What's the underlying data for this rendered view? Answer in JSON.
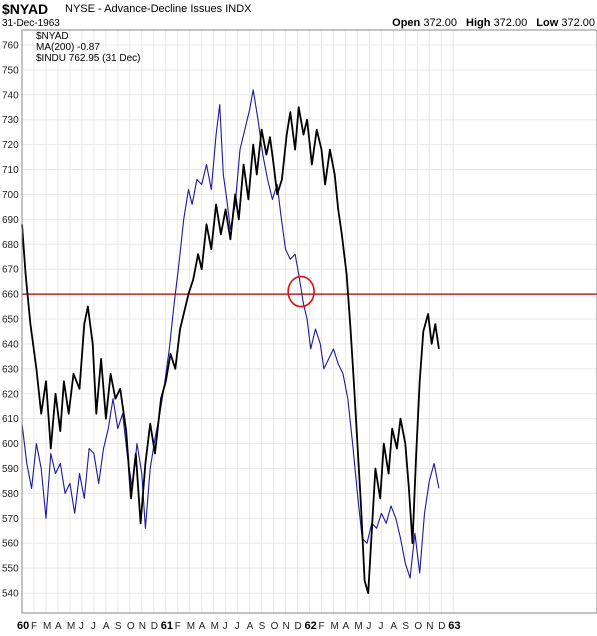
{
  "header": {
    "symbol": "$NYAD",
    "description": "NYSE - Advance-Decline Issues",
    "exchange": "INDX",
    "date": "31-Dec-1963",
    "open_label": "Open",
    "open_value": "372.00",
    "high_label": "High",
    "high_value": "372.00",
    "low_label": "Low",
    "low_value": "372.00"
  },
  "legend": [
    {
      "text": "$NYAD",
      "color": "#000000"
    },
    {
      "text": "MA(200) -0.87",
      "color": "#1f1fbf"
    },
    {
      "text": "$INDU 762.95 (31 Dec)",
      "color": "#000000"
    }
  ],
  "colors": {
    "indu": "#000000",
    "nyad": "#1a1a9e",
    "reference_line": "#b00000",
    "annotation": "#e01010",
    "grid": "#e8e8e8"
  },
  "chart_data": {
    "type": "line",
    "y_ticks": [
      540,
      550,
      560,
      570,
      580,
      590,
      600,
      610,
      620,
      630,
      640,
      650,
      660,
      670,
      680,
      690,
      700,
      710,
      720,
      730,
      740,
      750,
      760
    ],
    "ylim": [
      532,
      766
    ],
    "xlim": [
      0,
      48
    ],
    "x_ticks": [
      {
        "label": "60",
        "x": 0,
        "year": true
      },
      {
        "label": "F",
        "x": 1
      },
      {
        "label": "M",
        "x": 2
      },
      {
        "label": "A",
        "x": 3
      },
      {
        "label": "M",
        "x": 4
      },
      {
        "label": "J",
        "x": 5
      },
      {
        "label": "J",
        "x": 6
      },
      {
        "label": "A",
        "x": 7
      },
      {
        "label": "S",
        "x": 8
      },
      {
        "label": "O",
        "x": 9
      },
      {
        "label": "N",
        "x": 10
      },
      {
        "label": "D",
        "x": 11
      },
      {
        "label": "61",
        "x": 12,
        "year": true
      },
      {
        "label": "F",
        "x": 13
      },
      {
        "label": "M",
        "x": 14
      },
      {
        "label": "A",
        "x": 15
      },
      {
        "label": "M",
        "x": 16
      },
      {
        "label": "J",
        "x": 17
      },
      {
        "label": "J",
        "x": 18
      },
      {
        "label": "A",
        "x": 19
      },
      {
        "label": "S",
        "x": 20
      },
      {
        "label": "O",
        "x": 21
      },
      {
        "label": "N",
        "x": 22
      },
      {
        "label": "D",
        "x": 23
      },
      {
        "label": "62",
        "x": 24,
        "year": true
      },
      {
        "label": "F",
        "x": 25
      },
      {
        "label": "M",
        "x": 26
      },
      {
        "label": "A",
        "x": 27
      },
      {
        "label": "M",
        "x": 28
      },
      {
        "label": "J",
        "x": 29
      },
      {
        "label": "J",
        "x": 30
      },
      {
        "label": "A",
        "x": 31
      },
      {
        "label": "S",
        "x": 32
      },
      {
        "label": "O",
        "x": 33
      },
      {
        "label": "N",
        "x": 34
      },
      {
        "label": "D",
        "x": 35
      },
      {
        "label": "63",
        "x": 36,
        "year": true
      }
    ],
    "reference_line": 660,
    "annotation_circle": {
      "x": 23.3,
      "y": 661
    },
    "series": [
      {
        "name": "$INDU 762.95 (31 Dec)",
        "color": "#000000",
        "width": 1.8,
        "points": [
          [
            0,
            688
          ],
          [
            0.3,
            668
          ],
          [
            0.7,
            648
          ],
          [
            1.2,
            630
          ],
          [
            1.6,
            612
          ],
          [
            2,
            625
          ],
          [
            2.4,
            598
          ],
          [
            2.8,
            620
          ],
          [
            3.2,
            605
          ],
          [
            3.5,
            625
          ],
          [
            3.9,
            612
          ],
          [
            4.3,
            628
          ],
          [
            4.8,
            622
          ],
          [
            5.2,
            648
          ],
          [
            5.5,
            655
          ],
          [
            5.9,
            640
          ],
          [
            6.2,
            612
          ],
          [
            6.6,
            634
          ],
          [
            7,
            610
          ],
          [
            7.4,
            628
          ],
          [
            7.8,
            618
          ],
          [
            8.2,
            622
          ],
          [
            8.7,
            605
          ],
          [
            9.1,
            578
          ],
          [
            9.5,
            596
          ],
          [
            9.9,
            568
          ],
          [
            10.3,
            592
          ],
          [
            10.7,
            608
          ],
          [
            11.1,
            596
          ],
          [
            11.6,
            618
          ],
          [
            12,
            625
          ],
          [
            12.4,
            636
          ],
          [
            12.8,
            630
          ],
          [
            13.2,
            646
          ],
          [
            13.5,
            652
          ],
          [
            13.9,
            660
          ],
          [
            14.3,
            666
          ],
          [
            14.7,
            676
          ],
          [
            15,
            670
          ],
          [
            15.4,
            688
          ],
          [
            15.8,
            678
          ],
          [
            16.2,
            696
          ],
          [
            16.6,
            684
          ],
          [
            17,
            694
          ],
          [
            17.4,
            682
          ],
          [
            17.8,
            700
          ],
          [
            18.1,
            690
          ],
          [
            18.5,
            712
          ],
          [
            18.9,
            698
          ],
          [
            19.3,
            720
          ],
          [
            19.6,
            708
          ],
          [
            20,
            726
          ],
          [
            20.4,
            716
          ],
          [
            20.7,
            723
          ],
          [
            21,
            712
          ],
          [
            21.3,
            700
          ],
          [
            21.7,
            706
          ],
          [
            22.1,
            724
          ],
          [
            22.4,
            733
          ],
          [
            22.8,
            718
          ],
          [
            23.1,
            735
          ],
          [
            23.5,
            724
          ],
          [
            23.8,
            730
          ],
          [
            24.2,
            712
          ],
          [
            24.6,
            726
          ],
          [
            25,
            718
          ],
          [
            25.3,
            704
          ],
          [
            25.7,
            718
          ],
          [
            26.1,
            708
          ],
          [
            26.4,
            694
          ],
          [
            26.7,
            684
          ],
          [
            27.1,
            668
          ],
          [
            27.4,
            648
          ],
          [
            27.7,
            625
          ],
          [
            28,
            600
          ],
          [
            28.3,
            575
          ],
          [
            28.6,
            545
          ],
          [
            28.9,
            540
          ],
          [
            29.2,
            565
          ],
          [
            29.5,
            590
          ],
          [
            29.9,
            578
          ],
          [
            30.2,
            600
          ],
          [
            30.6,
            588
          ],
          [
            30.9,
            606
          ],
          [
            31.3,
            598
          ],
          [
            31.6,
            610
          ],
          [
            32,
            600
          ],
          [
            32.3,
            582
          ],
          [
            32.6,
            560
          ],
          [
            32.9,
            595
          ],
          [
            33.2,
            625
          ],
          [
            33.5,
            645
          ],
          [
            33.9,
            652
          ],
          [
            34.2,
            640
          ],
          [
            34.5,
            648
          ],
          [
            34.8,
            638
          ]
        ]
      },
      {
        "name": "$NYAD",
        "color": "#1a1a9e",
        "width": 1.1,
        "points": [
          [
            0,
            608
          ],
          [
            0.4,
            592
          ],
          [
            0.8,
            582
          ],
          [
            1.2,
            600
          ],
          [
            1.6,
            590
          ],
          [
            2,
            570
          ],
          [
            2.4,
            596
          ],
          [
            2.8,
            588
          ],
          [
            3.2,
            592
          ],
          [
            3.6,
            580
          ],
          [
            4,
            584
          ],
          [
            4.4,
            572
          ],
          [
            4.8,
            588
          ],
          [
            5.2,
            578
          ],
          [
            5.6,
            598
          ],
          [
            6,
            596
          ],
          [
            6.4,
            584
          ],
          [
            6.8,
            598
          ],
          [
            7.2,
            606
          ],
          [
            7.6,
            618
          ],
          [
            8,
            606
          ],
          [
            8.4,
            612
          ],
          [
            8.8,
            595
          ],
          [
            9.2,
            582
          ],
          [
            9.6,
            600
          ],
          [
            10,
            588
          ],
          [
            10.3,
            566
          ],
          [
            10.7,
            590
          ],
          [
            11.1,
            602
          ],
          [
            11.5,
            612
          ],
          [
            11.9,
            624
          ],
          [
            12.3,
            638
          ],
          [
            12.7,
            656
          ],
          [
            13.1,
            672
          ],
          [
            13.5,
            690
          ],
          [
            13.9,
            702
          ],
          [
            14.2,
            696
          ],
          [
            14.6,
            706
          ],
          [
            15,
            704
          ],
          [
            15.4,
            712
          ],
          [
            15.8,
            702
          ],
          [
            16.2,
            724
          ],
          [
            16.5,
            736
          ],
          [
            16.8,
            708
          ],
          [
            17.1,
            698
          ],
          [
            17.4,
            686
          ],
          [
            17.8,
            696
          ],
          [
            18.2,
            718
          ],
          [
            18.6,
            726
          ],
          [
            19,
            734
          ],
          [
            19.3,
            742
          ],
          [
            19.7,
            730
          ],
          [
            20.1,
            716
          ],
          [
            20.5,
            706
          ],
          [
            20.9,
            698
          ],
          [
            21.3,
            704
          ],
          [
            21.6,
            692
          ],
          [
            22,
            678
          ],
          [
            22.4,
            674
          ],
          [
            22.8,
            676
          ],
          [
            23.1,
            668
          ],
          [
            23.5,
            656
          ],
          [
            23.8,
            650
          ],
          [
            24.1,
            638
          ],
          [
            24.5,
            646
          ],
          [
            24.9,
            640
          ],
          [
            25.2,
            630
          ],
          [
            25.6,
            634
          ],
          [
            26,
            638
          ],
          [
            26.4,
            632
          ],
          [
            26.8,
            628
          ],
          [
            27.2,
            618
          ],
          [
            27.6,
            600
          ],
          [
            28,
            580
          ],
          [
            28.4,
            562
          ],
          [
            28.8,
            560
          ],
          [
            29.2,
            568
          ],
          [
            29.6,
            566
          ],
          [
            30,
            572
          ],
          [
            30.4,
            568
          ],
          [
            30.8,
            575
          ],
          [
            31.2,
            570
          ],
          [
            31.6,
            562
          ],
          [
            32,
            552
          ],
          [
            32.4,
            546
          ],
          [
            32.8,
            564
          ],
          [
            33.2,
            548
          ],
          [
            33.6,
            572
          ],
          [
            34,
            585
          ],
          [
            34.4,
            592
          ],
          [
            34.8,
            582
          ]
        ]
      }
    ]
  }
}
